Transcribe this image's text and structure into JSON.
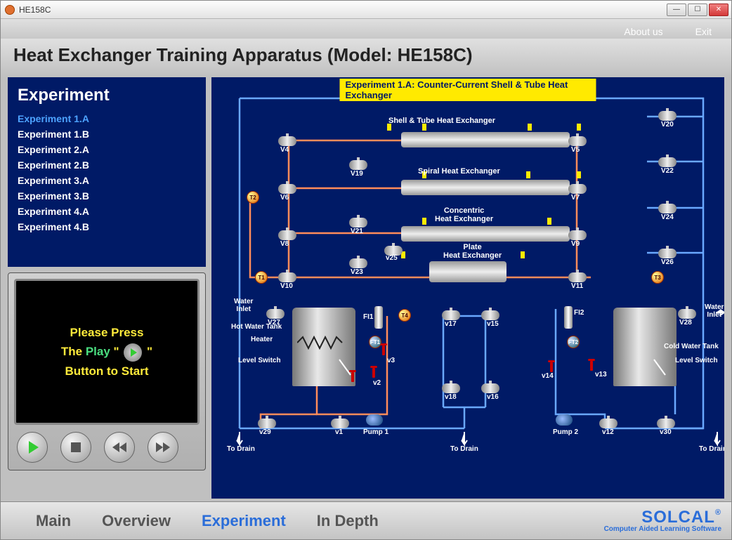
{
  "window": {
    "title": "HE158C"
  },
  "top_links": {
    "about": "About us",
    "exit": "Exit"
  },
  "page_title": "Heat Exchanger Training Apparatus (Model: HE158C)",
  "sidebar": {
    "heading": "Experiment",
    "items": [
      {
        "label": "Experiment 1.A",
        "active": true
      },
      {
        "label": "Experiment 1.B",
        "active": false
      },
      {
        "label": "Experiment 2.A",
        "active": false
      },
      {
        "label": "Experiment 2.B",
        "active": false
      },
      {
        "label": "Experiment 3.A",
        "active": false
      },
      {
        "label": "Experiment 3.B",
        "active": false
      },
      {
        "label": "Experiment 4.A",
        "active": false
      },
      {
        "label": "Experiment 4.B",
        "active": false
      }
    ]
  },
  "video": {
    "line1": "Please Press",
    "line2a": "The ",
    "line2b_play": "Play",
    "line2c_quote_l": " \" ",
    "line2c_quote_r": " \" ",
    "line3": "Button to Start"
  },
  "diagram": {
    "title": "Experiment 1.A: Counter-Current Shell & Tube Heat Exchanger",
    "colors": {
      "bg": "#001a66",
      "hot_pipe": "#ff8c5a",
      "cold_pipe": "#6aa8ff",
      "title_bg": "#ffea00"
    },
    "exchangers": {
      "shell_tube": "Shell & Tube Heat Exchanger",
      "spiral": "Spiral Heat Exchanger",
      "concentric_l1": "Concentric",
      "concentric_l2": "Heat Exchanger",
      "plate_l1": "Plate",
      "plate_l2": "Heat Exchanger"
    },
    "tanks": {
      "hot": "Hot Water Tank",
      "cold": "Cold Water Tank",
      "heater": "Heater",
      "level_switch": "Level Switch"
    },
    "labels": {
      "water_inlet_l": "Water\nInlet",
      "water_inlet_r": "Water\nInlet",
      "to_drain": "To Drain",
      "pump1": "Pump 1",
      "pump2": "Pump 2",
      "fi1": "FI1",
      "fi2": "FI2",
      "ft1": "FT1",
      "ft2": "FT2",
      "t1": "T1",
      "t2": "T2",
      "t3": "T3",
      "t4": "T4"
    },
    "valves": [
      "V4",
      "V5",
      "V6",
      "V7",
      "V8",
      "V9",
      "V10",
      "V11",
      "V19",
      "V20",
      "V21",
      "V22",
      "V23",
      "V24",
      "V25",
      "V26",
      "V27",
      "V28",
      "v1",
      "v2",
      "v3",
      "v12",
      "v13",
      "v14",
      "v15",
      "v16",
      "v17",
      "v18",
      "v29",
      "v30"
    ]
  },
  "nav": {
    "tabs": [
      {
        "label": "Main",
        "active": false
      },
      {
        "label": "Overview",
        "active": false
      },
      {
        "label": "Experiment",
        "active": true
      },
      {
        "label": "In Depth",
        "active": false
      }
    ]
  },
  "brand": {
    "name": "SOLCAL",
    "reg": "®",
    "tag": "Computer Aided Learning Software"
  }
}
